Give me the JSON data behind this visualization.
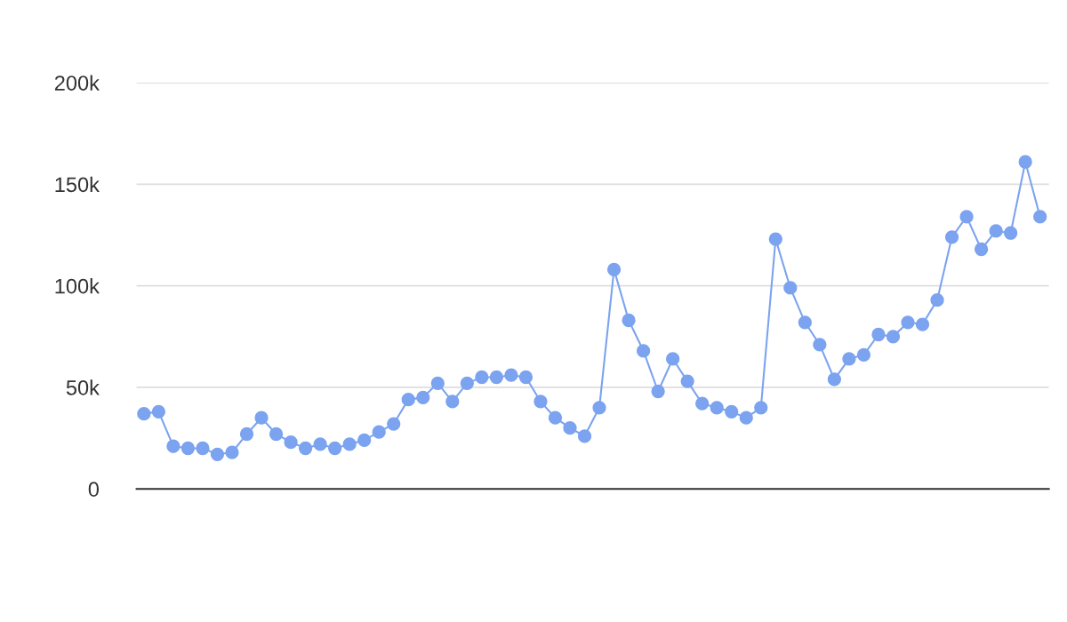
{
  "chart_data": {
    "type": "line",
    "categories": [
      null,
      null,
      null,
      null,
      null,
      null,
      null,
      null,
      null,
      null,
      null,
      null,
      null,
      null,
      null,
      null,
      null,
      null,
      null,
      null,
      null,
      null,
      null,
      null,
      null,
      null,
      null,
      null,
      null,
      null,
      null,
      null,
      null,
      null,
      null,
      null,
      null,
      null,
      null,
      null,
      null,
      null,
      null,
      null,
      null,
      null,
      null,
      null,
      null,
      null,
      null,
      null,
      null,
      null,
      null,
      null,
      null,
      null,
      null,
      null,
      null,
      null
    ],
    "series": [
      {
        "color": "#7ba3ef",
        "values": [
          37,
          38,
          21,
          20,
          20,
          17,
          18,
          27,
          35,
          27,
          23,
          20,
          22,
          20,
          22,
          24,
          28,
          32,
          44,
          45,
          52,
          43,
          52,
          55,
          55,
          56,
          55,
          43,
          35,
          30,
          26,
          40,
          108,
          83,
          68,
          48,
          64,
          53,
          42,
          40,
          38,
          35,
          40,
          123,
          99,
          82,
          71,
          54,
          64,
          66,
          76,
          75,
          82,
          81,
          93,
          124,
          134,
          118,
          127,
          126,
          161,
          134
        ]
      }
    ],
    "ylim": [
      0,
      200
    ],
    "yticks": [
      0,
      {
        "value": 50,
        "label": "50k"
      },
      {
        "value": 100,
        "label": "100k"
      },
      {
        "value": 150,
        "label": "150k"
      },
      {
        "value": 200,
        "label": "200k"
      }
    ],
    "grid": "y",
    "legend": false,
    "marker": "circle",
    "line_style": "solid",
    "tick_labels": "y"
  }
}
